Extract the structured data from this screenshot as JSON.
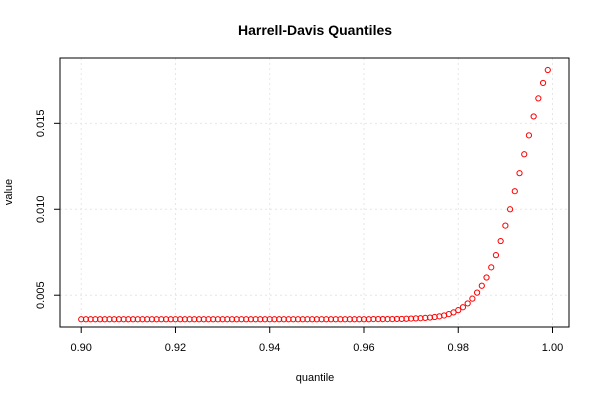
{
  "chart_data": {
    "type": "scatter",
    "title": "Harrell-Davis Quantiles",
    "xlabel": "quantile",
    "ylabel": "value",
    "xlim": [
      0.8955,
      1.0035
    ],
    "ylim": [
      0.00315,
      0.0188
    ],
    "x_ticks": [
      {
        "value": 0.9,
        "label": "0.90"
      },
      {
        "value": 0.92,
        "label": "0.92"
      },
      {
        "value": 0.94,
        "label": "0.94"
      },
      {
        "value": 0.96,
        "label": "0.96"
      },
      {
        "value": 0.98,
        "label": "0.98"
      },
      {
        "value": 1.0,
        "label": "1.00"
      }
    ],
    "y_ticks": [
      {
        "value": 0.005,
        "label": "0.005"
      },
      {
        "value": 0.01,
        "label": "0.010"
      },
      {
        "value": 0.015,
        "label": "0.015"
      }
    ],
    "grid": true,
    "point_color": "#ff0000",
    "points": [
      [
        0.9,
        0.0036
      ],
      [
        0.901,
        0.0036
      ],
      [
        0.902,
        0.0036
      ],
      [
        0.903,
        0.0036
      ],
      [
        0.904,
        0.0036
      ],
      [
        0.905,
        0.0036
      ],
      [
        0.906,
        0.0036
      ],
      [
        0.907,
        0.0036
      ],
      [
        0.908,
        0.0036
      ],
      [
        0.909,
        0.0036
      ],
      [
        0.91,
        0.0036
      ],
      [
        0.911,
        0.0036
      ],
      [
        0.912,
        0.0036
      ],
      [
        0.913,
        0.0036
      ],
      [
        0.914,
        0.0036
      ],
      [
        0.915,
        0.0036
      ],
      [
        0.916,
        0.0036
      ],
      [
        0.917,
        0.0036
      ],
      [
        0.918,
        0.0036
      ],
      [
        0.919,
        0.0036
      ],
      [
        0.92,
        0.0036
      ],
      [
        0.921,
        0.0036
      ],
      [
        0.922,
        0.0036
      ],
      [
        0.923,
        0.0036
      ],
      [
        0.924,
        0.0036
      ],
      [
        0.925,
        0.0036
      ],
      [
        0.926,
        0.0036
      ],
      [
        0.927,
        0.0036
      ],
      [
        0.928,
        0.0036
      ],
      [
        0.929,
        0.0036
      ],
      [
        0.93,
        0.0036
      ],
      [
        0.931,
        0.0036
      ],
      [
        0.932,
        0.0036
      ],
      [
        0.933,
        0.0036
      ],
      [
        0.934,
        0.0036
      ],
      [
        0.935,
        0.0036
      ],
      [
        0.936,
        0.0036
      ],
      [
        0.937,
        0.0036
      ],
      [
        0.938,
        0.0036
      ],
      [
        0.939,
        0.0036
      ],
      [
        0.94,
        0.0036
      ],
      [
        0.941,
        0.0036
      ],
      [
        0.942,
        0.0036
      ],
      [
        0.943,
        0.0036
      ],
      [
        0.944,
        0.0036
      ],
      [
        0.945,
        0.0036
      ],
      [
        0.946,
        0.0036
      ],
      [
        0.947,
        0.0036
      ],
      [
        0.948,
        0.0036
      ],
      [
        0.949,
        0.0036
      ],
      [
        0.95,
        0.0036
      ],
      [
        0.951,
        0.0036
      ],
      [
        0.952,
        0.0036
      ],
      [
        0.953,
        0.0036
      ],
      [
        0.954,
        0.0036
      ],
      [
        0.955,
        0.0036
      ],
      [
        0.956,
        0.0036
      ],
      [
        0.957,
        0.0036
      ],
      [
        0.958,
        0.0036
      ],
      [
        0.959,
        0.0036
      ],
      [
        0.96,
        0.0036
      ],
      [
        0.961,
        0.0036
      ],
      [
        0.962,
        0.00361
      ],
      [
        0.963,
        0.00361
      ],
      [
        0.964,
        0.00361
      ],
      [
        0.965,
        0.00361
      ],
      [
        0.966,
        0.00361
      ],
      [
        0.967,
        0.00362
      ],
      [
        0.968,
        0.00362
      ],
      [
        0.969,
        0.00363
      ],
      [
        0.97,
        0.00364
      ],
      [
        0.971,
        0.00365
      ],
      [
        0.972,
        0.00366
      ],
      [
        0.973,
        0.00368
      ],
      [
        0.974,
        0.0037
      ],
      [
        0.975,
        0.00373
      ],
      [
        0.976,
        0.00377
      ],
      [
        0.977,
        0.00382
      ],
      [
        0.978,
        0.0039
      ],
      [
        0.979,
        0.004
      ],
      [
        0.98,
        0.00413
      ],
      [
        0.981,
        0.0043
      ],
      [
        0.982,
        0.00452
      ],
      [
        0.983,
        0.0048
      ],
      [
        0.984,
        0.00515
      ],
      [
        0.985,
        0.00555
      ],
      [
        0.986,
        0.00603
      ],
      [
        0.987,
        0.00662
      ],
      [
        0.988,
        0.00733
      ],
      [
        0.989,
        0.00815
      ],
      [
        0.99,
        0.00905
      ],
      [
        0.991,
        0.01
      ],
      [
        0.992,
        0.01105
      ],
      [
        0.993,
        0.0121
      ],
      [
        0.994,
        0.0132
      ],
      [
        0.995,
        0.0143
      ],
      [
        0.996,
        0.0154
      ],
      [
        0.997,
        0.01645
      ],
      [
        0.998,
        0.01735
      ],
      [
        0.999,
        0.0181
      ]
    ]
  }
}
